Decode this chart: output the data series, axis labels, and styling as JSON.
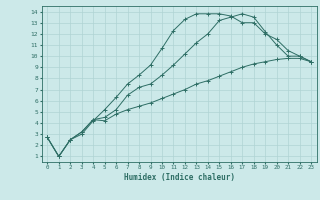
{
  "title": "",
  "xlabel": "Humidex (Indice chaleur)",
  "xlim": [
    -0.5,
    23.5
  ],
  "ylim": [
    0.5,
    14.5
  ],
  "xticks": [
    0,
    1,
    2,
    3,
    4,
    5,
    6,
    7,
    8,
    9,
    10,
    11,
    12,
    13,
    14,
    15,
    16,
    17,
    18,
    19,
    20,
    21,
    22,
    23
  ],
  "yticks": [
    1,
    2,
    3,
    4,
    5,
    6,
    7,
    8,
    9,
    10,
    11,
    12,
    13,
    14
  ],
  "bg_color": "#cce9e9",
  "line_color": "#2e6e65",
  "grid_color": "#b0d4d4",
  "line1_x": [
    0,
    1,
    2,
    3,
    4,
    5,
    6,
    7,
    8,
    9,
    10,
    11,
    12,
    13,
    14,
    15,
    16,
    17,
    18,
    19,
    20,
    21,
    22,
    23
  ],
  "line1_y": [
    2.7,
    1.0,
    2.5,
    3.0,
    4.2,
    5.2,
    6.3,
    7.5,
    8.3,
    9.2,
    10.7,
    12.3,
    13.3,
    13.8,
    13.8,
    13.8,
    13.6,
    13.0,
    13.0,
    12.0,
    11.5,
    10.5,
    10.0,
    9.5
  ],
  "line2_x": [
    0,
    1,
    2,
    3,
    4,
    5,
    6,
    7,
    8,
    9,
    10,
    11,
    12,
    13,
    14,
    15,
    16,
    17,
    18,
    19,
    20,
    21,
    22,
    23
  ],
  "line2_y": [
    2.7,
    1.0,
    2.5,
    3.2,
    4.3,
    4.5,
    5.2,
    6.5,
    7.2,
    7.5,
    8.3,
    9.2,
    10.2,
    11.2,
    12.0,
    13.2,
    13.5,
    13.8,
    13.5,
    12.2,
    11.0,
    10.0,
    10.0,
    9.5
  ],
  "line3_x": [
    0,
    1,
    2,
    3,
    4,
    5,
    6,
    7,
    8,
    9,
    10,
    11,
    12,
    13,
    14,
    15,
    16,
    17,
    18,
    19,
    20,
    21,
    22,
    23
  ],
  "line3_y": [
    2.7,
    1.0,
    2.5,
    3.2,
    4.3,
    4.2,
    4.8,
    5.2,
    5.5,
    5.8,
    6.2,
    6.6,
    7.0,
    7.5,
    7.8,
    8.2,
    8.6,
    9.0,
    9.3,
    9.5,
    9.7,
    9.8,
    9.8,
    9.5
  ]
}
